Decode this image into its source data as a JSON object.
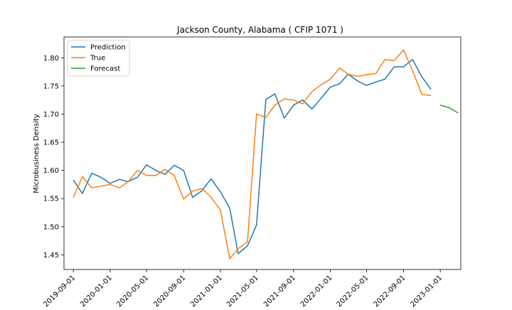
{
  "chart_data": {
    "type": "line",
    "title": "Jackson County, Alabama ( CFIP 1071 )",
    "xlabel": "",
    "ylabel": "Microbusiness Density",
    "xlim": [
      "2019-08-01",
      "2023-03-10"
    ],
    "ylim": [
      1.424,
      1.837
    ],
    "grid": false,
    "legend_position": "top-left",
    "x_ticks": [
      "2019-09-01",
      "2020-01-01",
      "2020-05-01",
      "2020-09-01",
      "2021-01-01",
      "2021-05-01",
      "2021-09-01",
      "2022-01-01",
      "2022-05-01",
      "2022-09-01",
      "2023-01-01"
    ],
    "y_ticks": [
      1.45,
      1.5,
      1.55,
      1.6,
      1.65,
      1.7,
      1.75,
      1.8
    ],
    "series": [
      {
        "name": "Prediction",
        "color": "#1f77b4",
        "x": [
          "2019-09-01",
          "2019-10-01",
          "2019-11-01",
          "2019-12-01",
          "2020-01-01",
          "2020-02-01",
          "2020-03-01",
          "2020-04-01",
          "2020-05-01",
          "2020-06-01",
          "2020-07-01",
          "2020-08-01",
          "2020-09-01",
          "2020-10-01",
          "2020-11-01",
          "2020-12-01",
          "2021-01-01",
          "2021-02-01",
          "2021-03-01",
          "2021-04-01",
          "2021-05-01",
          "2021-06-01",
          "2021-07-01",
          "2021-08-01",
          "2021-09-01",
          "2021-10-01",
          "2021-11-01",
          "2021-12-01",
          "2022-01-01",
          "2022-02-01",
          "2022-03-01",
          "2022-04-01",
          "2022-05-01",
          "2022-06-01",
          "2022-07-01",
          "2022-08-01",
          "2022-09-01",
          "2022-10-01",
          "2022-11-01",
          "2022-12-01"
        ],
        "values": [
          1.583,
          1.559,
          1.595,
          1.588,
          1.577,
          1.584,
          1.58,
          1.588,
          1.61,
          1.6,
          1.593,
          1.609,
          1.6,
          1.552,
          1.564,
          1.585,
          1.562,
          1.533,
          1.452,
          1.466,
          1.503,
          1.726,
          1.736,
          1.693,
          1.716,
          1.725,
          1.709,
          1.728,
          1.748,
          1.754,
          1.771,
          1.759,
          1.751,
          1.757,
          1.762,
          1.784,
          1.784,
          1.797,
          1.766,
          1.744
        ]
      },
      {
        "name": "True",
        "color": "#ff7f0e",
        "x": [
          "2019-09-01",
          "2019-10-01",
          "2019-11-01",
          "2019-12-01",
          "2020-01-01",
          "2020-02-01",
          "2020-03-01",
          "2020-04-01",
          "2020-05-01",
          "2020-06-01",
          "2020-07-01",
          "2020-08-01",
          "2020-09-01",
          "2020-10-01",
          "2020-11-01",
          "2020-12-01",
          "2021-01-01",
          "2021-02-01",
          "2021-03-01",
          "2021-04-01",
          "2021-05-01",
          "2021-06-01",
          "2021-07-01",
          "2021-08-01",
          "2021-09-01",
          "2021-10-01",
          "2021-11-01",
          "2021-12-01",
          "2022-01-01",
          "2022-02-01",
          "2022-03-01",
          "2022-04-01",
          "2022-05-01",
          "2022-06-01",
          "2022-07-01",
          "2022-08-01",
          "2022-09-01",
          "2022-10-01",
          "2022-11-01",
          "2022-12-01"
        ],
        "values": [
          1.552,
          1.589,
          1.569,
          1.572,
          1.575,
          1.569,
          1.58,
          1.6,
          1.591,
          1.591,
          1.602,
          1.591,
          1.549,
          1.563,
          1.568,
          1.552,
          1.53,
          1.443,
          1.461,
          1.473,
          1.7,
          1.694,
          1.716,
          1.727,
          1.725,
          1.718,
          1.74,
          1.752,
          1.762,
          1.782,
          1.771,
          1.767,
          1.77,
          1.772,
          1.797,
          1.795,
          1.814,
          1.777,
          1.735,
          1.733
        ]
      },
      {
        "name": "Forecast",
        "color": "#2ca02c",
        "x": [
          "2023-01-01",
          "2023-02-01",
          "2023-03-01"
        ],
        "values": [
          1.716,
          1.711,
          1.702
        ]
      }
    ]
  }
}
